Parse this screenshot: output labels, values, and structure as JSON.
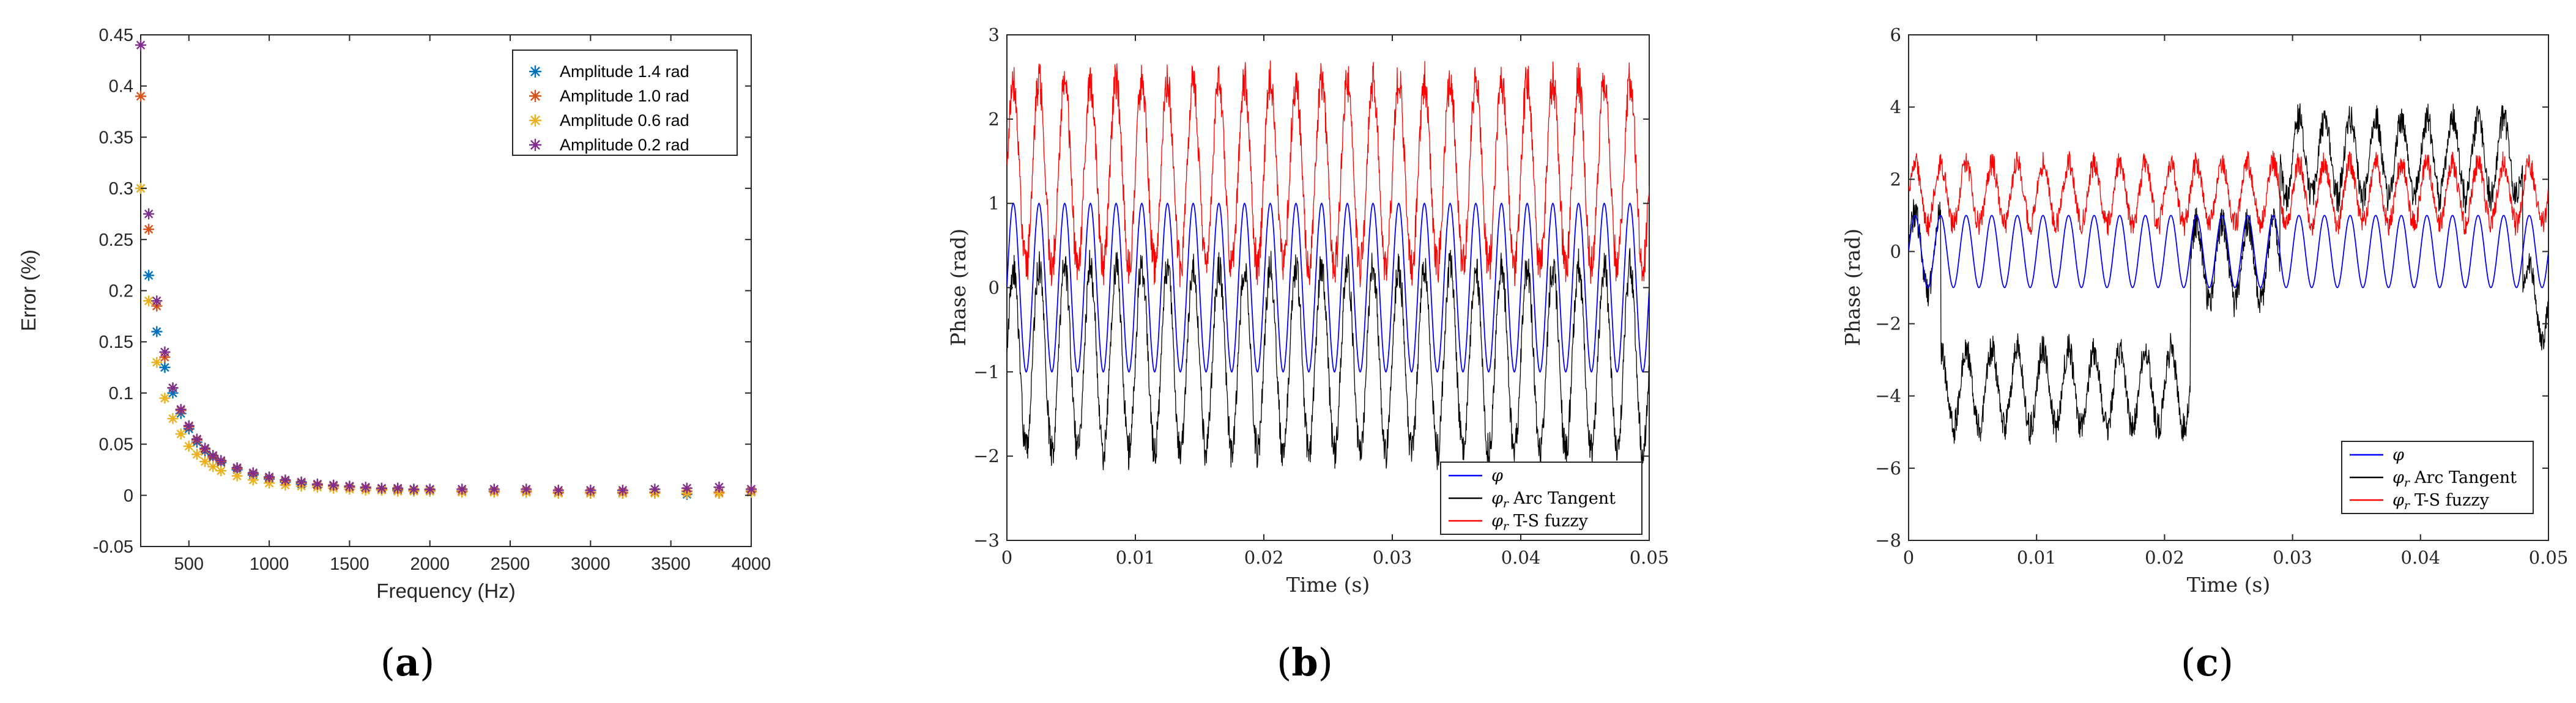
{
  "chart_data": [
    {
      "id": "a",
      "type": "scatter",
      "panel_label": "a",
      "title": "",
      "xlabel": "Frequency (Hz)",
      "ylabel": "Error (%)",
      "xlim": [
        200,
        4000
      ],
      "ylim": [
        -0.05,
        0.45
      ],
      "xticks": [
        500,
        1000,
        1500,
        2000,
        2500,
        3000,
        3500,
        4000
      ],
      "yticks": [
        -0.05,
        0,
        0.05,
        0.1,
        0.15,
        0.2,
        0.25,
        0.3,
        0.35,
        0.4,
        0.45
      ],
      "legend_position": "top-right",
      "x": [
        200,
        250,
        300,
        350,
        400,
        450,
        500,
        550,
        600,
        650,
        700,
        800,
        900,
        1000,
        1100,
        1200,
        1300,
        1400,
        1500,
        1600,
        1700,
        1800,
        1900,
        2000,
        2200,
        2400,
        2600,
        2800,
        3000,
        3200,
        3400,
        3600,
        3800,
        4000
      ],
      "series": [
        {
          "name": "Amplitude 1.4 rad",
          "color": "#0072BD",
          "values": [
            0.3,
            0.215,
            0.16,
            0.125,
            0.1,
            0.08,
            0.065,
            0.052,
            0.043,
            0.037,
            0.032,
            0.025,
            0.02,
            0.016,
            0.013,
            0.011,
            0.01,
            0.009,
            0.008,
            0.007,
            0.006,
            0.005,
            0.005,
            0.004,
            0.004,
            0.004,
            0.003,
            0.003,
            0.002,
            0.002,
            0.003,
            0.001,
            0.002,
            0.003
          ]
        },
        {
          "name": "Amplitude 1.0 rad",
          "color": "#D95319",
          "values": [
            0.39,
            0.26,
            0.185,
            0.135,
            0.105,
            0.083,
            0.067,
            0.054,
            0.045,
            0.038,
            0.033,
            0.026,
            0.021,
            0.017,
            0.014,
            0.012,
            0.01,
            0.009,
            0.008,
            0.007,
            0.006,
            0.006,
            0.005,
            0.005,
            0.004,
            0.004,
            0.004,
            0.003,
            0.003,
            0.003,
            0.003,
            0.004,
            0.003,
            0.004
          ]
        },
        {
          "name": "Amplitude 0.6 rad",
          "color": "#EDB120",
          "values": [
            0.3,
            0.19,
            0.13,
            0.095,
            0.075,
            0.06,
            0.048,
            0.04,
            0.033,
            0.028,
            0.024,
            0.019,
            0.015,
            0.012,
            0.01,
            0.009,
            0.008,
            0.007,
            0.006,
            0.005,
            0.005,
            0.004,
            0.004,
            0.004,
            0.003,
            0.003,
            0.003,
            0.002,
            0.002,
            0.002,
            0.002,
            0.002,
            0.002,
            0.003
          ]
        },
        {
          "name": "Amplitude 0.2 rad",
          "color": "#7E2F8E",
          "values": [
            0.44,
            0.275,
            0.19,
            0.14,
            0.105,
            0.084,
            0.068,
            0.055,
            0.046,
            0.039,
            0.034,
            0.027,
            0.022,
            0.018,
            0.015,
            0.013,
            0.011,
            0.01,
            0.009,
            0.008,
            0.007,
            0.007,
            0.006,
            0.006,
            0.006,
            0.006,
            0.006,
            0.005,
            0.005,
            0.005,
            0.006,
            0.007,
            0.008,
            0.006
          ]
        }
      ]
    },
    {
      "id": "b",
      "type": "line",
      "panel_label": "b",
      "title": "",
      "xlabel": "Time (s)",
      "ylabel": "Phase (rad)",
      "xlim": [
        0,
        0.05
      ],
      "ylim": [
        -3,
        3
      ],
      "xticks": [
        0,
        0.01,
        0.02,
        0.03,
        0.04,
        0.05
      ],
      "yticks": [
        -3,
        -2,
        -1,
        0,
        1,
        2,
        3
      ],
      "legend_position": "bottom-right",
      "signal": {
        "frequency_hz": 500,
        "amplitude_rad": 1.0
      },
      "series": [
        {
          "name": "φ",
          "label_main": "φ",
          "label_sub": "",
          "label_text": "",
          "color": "#0000ff",
          "offset": 0.0,
          "amplitude": 1.0,
          "noise": 0.0
        },
        {
          "name": "φr Arc Tangent",
          "label_main": "φ",
          "label_sub": "r",
          "label_text": "Arc Tangent",
          "color": "#000000",
          "offset": -0.85,
          "amplitude": 1.1,
          "noise": 0.22
        },
        {
          "name": "φr T-S fuzzy",
          "label_main": "φ",
          "label_sub": "r",
          "label_text": "T-S fuzzy",
          "color": "#ff0000",
          "offset": 1.35,
          "amplitude": 1.1,
          "noise": 0.25
        }
      ]
    },
    {
      "id": "c",
      "type": "line",
      "panel_label": "c",
      "title": "",
      "xlabel": "Time (s)",
      "ylabel": "Phase (rad)",
      "xlim": [
        0,
        0.05
      ],
      "ylim": [
        -8,
        6
      ],
      "xticks": [
        0,
        0.01,
        0.02,
        0.03,
        0.04,
        0.05
      ],
      "yticks": [
        -8,
        -6,
        -4,
        -2,
        0,
        2,
        4,
        6
      ],
      "legend_position": "bottom-right",
      "signal": {
        "frequency_hz": 500,
        "amplitude_rad": 1.0
      },
      "arc_tangent_levels": [
        {
          "t_start": 0.0,
          "t_end": 0.0025,
          "level": 0.0
        },
        {
          "t_start": 0.0025,
          "t_end": 0.022,
          "level": -3.8
        },
        {
          "t_start": 0.022,
          "t_end": 0.029,
          "level": -0.3
        },
        {
          "t_start": 0.029,
          "t_end": 0.048,
          "level": 2.6
        },
        {
          "t_start": 0.048,
          "t_end": 0.05,
          "level": -1.3
        }
      ],
      "series": [
        {
          "name": "φ",
          "label_main": "φ",
          "label_sub": "",
          "label_text": "",
          "color": "#0000ff",
          "offset": 0.0,
          "amplitude": 1.0,
          "noise": 0.0
        },
        {
          "name": "φr Arc Tangent",
          "label_main": "φ",
          "label_sub": "r",
          "label_text": "Arc Tangent",
          "color": "#000000",
          "offset": 0.0,
          "amplitude": 1.1,
          "noise": 0.45
        },
        {
          "name": "φr T-S fuzzy",
          "label_main": "φ",
          "label_sub": "r",
          "label_text": "T-S fuzzy",
          "color": "#ff0000",
          "offset": 1.6,
          "amplitude": 0.85,
          "noise": 0.35
        }
      ]
    }
  ]
}
